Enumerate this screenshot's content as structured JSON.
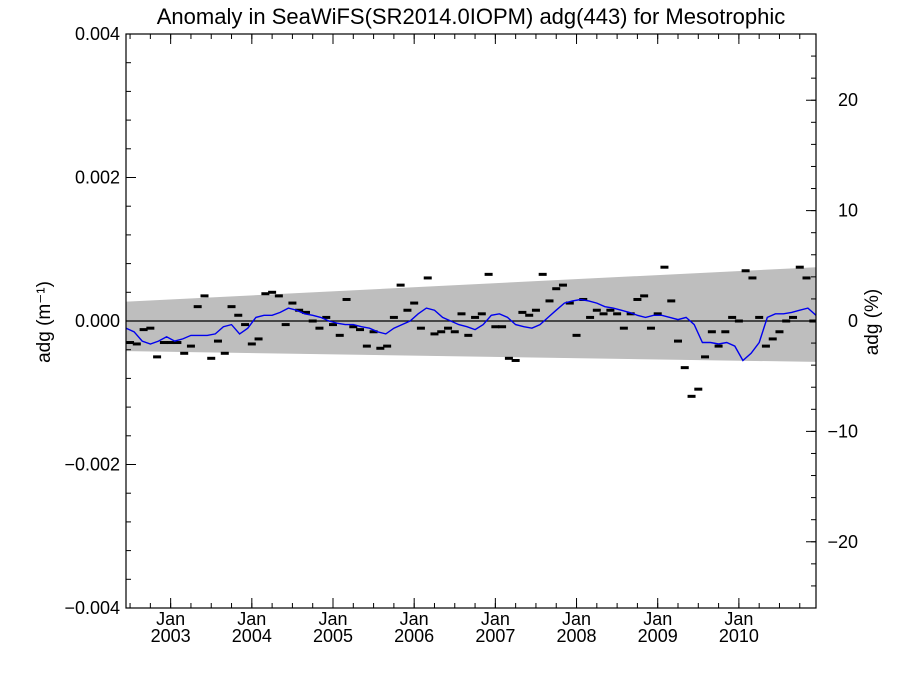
{
  "chart_data": {
    "type": "scatter",
    "title": "Anomaly in SeaWiFS(SR2014.0IOPM) adg(443) for Mesotrophic",
    "ylabel": "adg (m⁻¹)",
    "y2label": "adg (%)",
    "ylim": [
      -0.004,
      0.004
    ],
    "y2lim": [
      -26,
      26
    ],
    "xlim": [
      2002.45,
      2010.95
    ],
    "y_ticks": [
      -0.004,
      -0.002,
      0.0,
      0.002,
      0.004
    ],
    "y_tick_labels": [
      "−0.004",
      "−0.002",
      "0.000",
      "0.002",
      "0.004"
    ],
    "y2_ticks": [
      -20,
      -10,
      0,
      10,
      20
    ],
    "y2_tick_labels": [
      "−20",
      "−10",
      "0",
      "10",
      "20"
    ],
    "x_ticks": [
      {
        "x": 2003.0,
        "month": "Jan",
        "year": "2003"
      },
      {
        "x": 2004.0,
        "month": "Jan",
        "year": "2004"
      },
      {
        "x": 2005.0,
        "month": "Jan",
        "year": "2005"
      },
      {
        "x": 2006.0,
        "month": "Jan",
        "year": "2006"
      },
      {
        "x": 2007.0,
        "month": "Jan",
        "year": "2007"
      },
      {
        "x": 2008.0,
        "month": "Jan",
        "year": "2008"
      },
      {
        "x": 2009.0,
        "month": "Jan",
        "year": "2009"
      },
      {
        "x": 2010.0,
        "month": "Jan",
        "year": "2010"
      }
    ],
    "zero_line": 0.0,
    "band": {
      "x": [
        2002.45,
        2010.95
      ],
      "upper": [
        0.00027,
        0.00075
      ],
      "lower": [
        -0.00042,
        -0.00057
      ],
      "color": "#bebebe"
    },
    "series": [
      {
        "kind": "points",
        "color": "#000000",
        "x": [
          2002.5,
          2002.583,
          2002.667,
          2002.75,
          2002.833,
          2002.917,
          2003.0,
          2003.083,
          2003.167,
          2003.25,
          2003.333,
          2003.417,
          2003.5,
          2003.583,
          2003.667,
          2003.75,
          2003.833,
          2003.917,
          2004.0,
          2004.083,
          2004.167,
          2004.25,
          2004.333,
          2004.417,
          2004.5,
          2004.583,
          2004.667,
          2004.75,
          2004.833,
          2004.917,
          2005.0,
          2005.083,
          2005.167,
          2005.25,
          2005.333,
          2005.417,
          2005.5,
          2005.583,
          2005.667,
          2005.75,
          2005.833,
          2005.917,
          2006.0,
          2006.083,
          2006.167,
          2006.25,
          2006.333,
          2006.417,
          2006.5,
          2006.583,
          2006.667,
          2006.75,
          2006.833,
          2006.917,
          2007.0,
          2007.083,
          2007.167,
          2007.25,
          2007.333,
          2007.417,
          2007.5,
          2007.583,
          2007.667,
          2007.75,
          2007.833,
          2007.917,
          2008.0,
          2008.083,
          2008.167,
          2008.25,
          2008.333,
          2008.417,
          2008.5,
          2008.583,
          2008.667,
          2008.75,
          2008.833,
          2008.917,
          2009.0,
          2009.083,
          2009.167,
          2009.25,
          2009.333,
          2009.417,
          2009.5,
          2009.583,
          2009.667,
          2009.75,
          2009.833,
          2009.917,
          2010.0,
          2010.083,
          2010.167,
          2010.25,
          2010.333,
          2010.417,
          2010.5,
          2010.583,
          2010.667,
          2010.75,
          2010.833,
          2010.917
        ],
        "y": [
          -0.0003,
          -0.00032,
          -0.00012,
          -0.0001,
          -0.0005,
          -0.0003,
          -0.0003,
          -0.0003,
          -0.00045,
          -0.00035,
          0.0002,
          0.00035,
          -0.00052,
          -0.00028,
          -0.00045,
          0.0002,
          8e-05,
          -5e-05,
          -0.00032,
          -0.00025,
          0.00038,
          0.0004,
          0.00035,
          -5e-05,
          0.00025,
          0.00015,
          0.00012,
          0.0,
          -0.0001,
          5e-05,
          -5e-05,
          -0.0002,
          0.0003,
          -8e-05,
          -0.00012,
          -0.00035,
          -0.00015,
          -0.00038,
          -0.00035,
          5e-05,
          0.0005,
          0.00015,
          0.00025,
          -0.0001,
          0.0006,
          -0.00018,
          -0.00015,
          -0.0001,
          -0.00015,
          0.0001,
          -0.0002,
          5e-05,
          0.0001,
          0.00065,
          -8e-05,
          -8e-05,
          -0.00052,
          -0.00055,
          0.00012,
          8e-05,
          0.00015,
          0.00065,
          0.00028,
          0.00045,
          0.0005,
          0.00025,
          -0.0002,
          0.0003,
          5e-05,
          0.00015,
          0.0001,
          0.00015,
          0.0001,
          -0.0001,
          0.0001,
          0.0003,
          0.00035,
          -0.0001,
          0.0001,
          0.00075,
          0.00028,
          -0.00028,
          -0.00065,
          -0.00105,
          -0.00095,
          -0.0005,
          -0.00015,
          -0.00035,
          -0.00015,
          5e-05,
          0.0,
          0.0007,
          0.0006,
          5e-05,
          -0.00035,
          -0.00025,
          -0.00015,
          0.0,
          5e-05,
          0.00075,
          0.0006,
          0.0
        ]
      },
      {
        "kind": "line",
        "color": "#0000ee",
        "x": [
          2002.45,
          2002.55,
          2002.65,
          2002.75,
          2002.85,
          2002.95,
          2003.05,
          2003.15,
          2003.25,
          2003.35,
          2003.45,
          2003.55,
          2003.65,
          2003.75,
          2003.85,
          2003.95,
          2004.05,
          2004.15,
          2004.25,
          2004.35,
          2004.45,
          2004.55,
          2004.65,
          2004.75,
          2004.85,
          2004.95,
          2005.05,
          2005.15,
          2005.25,
          2005.35,
          2005.45,
          2005.55,
          2005.65,
          2005.75,
          2005.85,
          2005.95,
          2006.05,
          2006.15,
          2006.25,
          2006.35,
          2006.45,
          2006.55,
          2006.65,
          2006.75,
          2006.85,
          2006.95,
          2007.05,
          2007.15,
          2007.25,
          2007.35,
          2007.45,
          2007.55,
          2007.65,
          2007.75,
          2007.85,
          2007.95,
          2008.05,
          2008.15,
          2008.25,
          2008.35,
          2008.45,
          2008.55,
          2008.65,
          2008.75,
          2008.85,
          2008.95,
          2009.05,
          2009.15,
          2009.25,
          2009.35,
          2009.45,
          2009.55,
          2009.65,
          2009.75,
          2009.85,
          2009.95,
          2010.05,
          2010.15,
          2010.25,
          2010.35,
          2010.45,
          2010.55,
          2010.65,
          2010.75,
          2010.85,
          2010.95
        ],
        "y": [
          -0.0001,
          -0.00015,
          -0.00028,
          -0.00032,
          -0.00028,
          -0.00022,
          -0.00028,
          -0.00025,
          -0.0002,
          -0.0002,
          -0.0002,
          -0.00018,
          -8e-05,
          -5e-05,
          -0.00018,
          -0.0001,
          5e-05,
          8e-05,
          8e-05,
          0.00012,
          0.00018,
          0.00015,
          0.0001,
          8e-05,
          5e-05,
          0.0,
          -3e-05,
          -5e-05,
          -5e-05,
          -8e-05,
          -0.0001,
          -0.00015,
          -0.00018,
          -0.0001,
          -5e-05,
          0.0,
          0.0001,
          0.00018,
          0.00015,
          5e-05,
          0.0,
          -5e-05,
          -8e-05,
          -0.00012,
          -5e-05,
          8e-05,
          0.0001,
          5e-05,
          -5e-05,
          -8e-05,
          -0.0001,
          -5e-05,
          5e-05,
          0.00015,
          0.00025,
          0.00028,
          0.0003,
          0.00028,
          0.00025,
          0.0002,
          0.00018,
          0.00015,
          0.00012,
          8e-05,
          5e-05,
          8e-05,
          8e-05,
          5e-05,
          2e-05,
          5e-05,
          -5e-05,
          -0.0003,
          -0.0003,
          -0.00032,
          -0.0003,
          -0.00035,
          -0.00055,
          -0.00045,
          -0.0003,
          5e-05,
          0.0001,
          0.0001,
          0.00012,
          0.00015,
          0.00018,
          8e-05
        ]
      }
    ]
  }
}
